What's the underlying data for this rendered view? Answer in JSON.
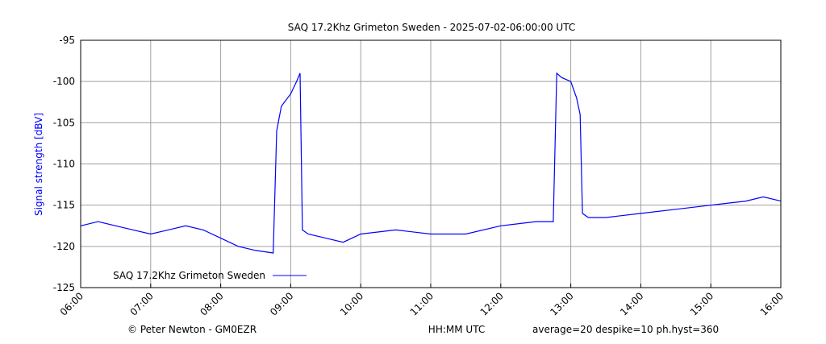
{
  "chart_data": {
    "type": "line",
    "title": "SAQ 17.2Khz  Grimeton Sweden  -  2025-07-02-06:00:00 UTC",
    "xlabel": "HH:MM UTC",
    "ylabel": "Signal strength [dBV]",
    "xlim": [
      "06:00",
      "16:00"
    ],
    "ylim": [
      -125,
      -95
    ],
    "x_ticks": [
      "06:00",
      "07:00",
      "08:00",
      "09:00",
      "10:00",
      "11:00",
      "12:00",
      "13:00",
      "14:00",
      "15:00",
      "16:00"
    ],
    "y_ticks": [
      -95,
      -100,
      -105,
      -110,
      -115,
      -120,
      -125
    ],
    "grid": true,
    "legend_position": "bottom-left",
    "series": [
      {
        "name": "SAQ 17.2Khz  Grimeton Sweden",
        "color": "#0000ff",
        "x": [
          "06:00",
          "06:15",
          "06:30",
          "06:45",
          "07:00",
          "07:15",
          "07:30",
          "07:45",
          "08:00",
          "08:15",
          "08:30",
          "08:45",
          "08:48",
          "08:52",
          "09:00",
          "09:05",
          "09:08",
          "09:10",
          "09:15",
          "09:30",
          "09:45",
          "10:00",
          "10:30",
          "11:00",
          "11:30",
          "12:00",
          "12:30",
          "12:45",
          "12:48",
          "12:52",
          "13:00",
          "13:05",
          "13:08",
          "13:10",
          "13:15",
          "13:30",
          "14:00",
          "14:30",
          "15:00",
          "15:30",
          "15:45",
          "16:00"
        ],
        "values": [
          -117.5,
          -117.0,
          -117.5,
          -118.0,
          -118.5,
          -118.0,
          -117.5,
          -118.0,
          -119.0,
          -120.0,
          -120.5,
          -120.8,
          -106.0,
          -103.0,
          -101.5,
          -100.0,
          -99.0,
          -118.0,
          -118.5,
          -119.0,
          -119.5,
          -118.5,
          -118.0,
          -118.5,
          -118.5,
          -117.5,
          -117.0,
          -117.0,
          -99.0,
          -99.5,
          -100.0,
          -102.0,
          -104.0,
          -116.0,
          -116.5,
          -116.5,
          -116.0,
          -115.5,
          -115.0,
          -114.5,
          -114.0,
          -114.5
        ]
      }
    ]
  },
  "footer": {
    "credit": "© Peter Newton - GM0EZR",
    "params": "average=20  despike=10  ph.hyst=360"
  }
}
